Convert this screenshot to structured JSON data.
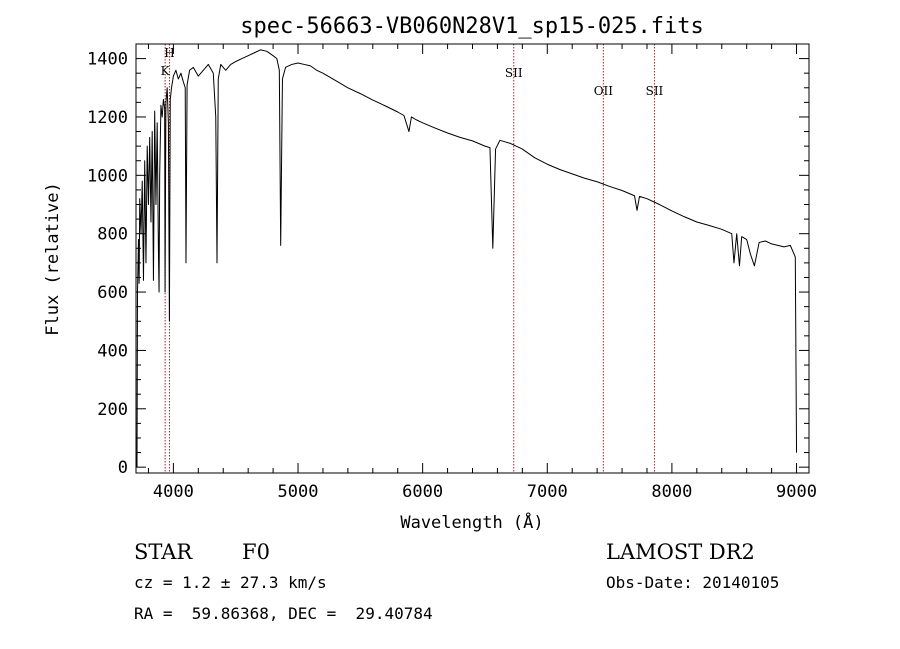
{
  "chart_data": {
    "type": "line",
    "title": "spec-56663-VB060N28V1_sp15-025.fits",
    "xlabel": "Wavelength (Å)",
    "ylabel": "Flux (relative)",
    "xlim": [
      3700,
      9100
    ],
    "ylim": [
      -20,
      1450
    ],
    "xticks": [
      4000,
      5000,
      6000,
      7000,
      8000,
      9000
    ],
    "yticks": [
      0,
      200,
      400,
      600,
      800,
      1000,
      1200,
      1400
    ],
    "grid": false,
    "line_color": "#000000",
    "marker_color": "#b22222",
    "line_markers": [
      {
        "label": "H",
        "x": 3969
      },
      {
        "label": "K",
        "x": 3934
      },
      {
        "label": "SII",
        "x": 6731
      },
      {
        "label": "OII",
        "x": 7450
      },
      {
        "label": "SII",
        "x": 7860
      }
    ],
    "series": [
      {
        "x": [
          3708,
          3712,
          3720,
          3725,
          3730,
          3740,
          3750,
          3760,
          3770,
          3780,
          3790,
          3800,
          3810,
          3820,
          3830,
          3840,
          3850,
          3860,
          3870,
          3880,
          3885,
          3890,
          3900,
          3910,
          3920,
          3930,
          3933,
          3940,
          3950,
          3960,
          3968,
          3975,
          3985,
          4000,
          4020,
          4040,
          4060,
          4080,
          4095,
          4101,
          4110,
          4130,
          4160,
          4200,
          4240,
          4280,
          4320,
          4340,
          4350,
          4360,
          4380,
          4420,
          4460,
          4500,
          4550,
          4600,
          4650,
          4700,
          4750,
          4800,
          4830,
          4850,
          4861,
          4875,
          4900,
          4950,
          5000,
          5050,
          5100,
          5150,
          5200,
          5300,
          5400,
          5500,
          5600,
          5700,
          5800,
          5850,
          5890,
          5910,
          5950,
          6000,
          6100,
          6200,
          6300,
          6400,
          6500,
          6540,
          6563,
          6585,
          6620,
          6700,
          6800,
          6900,
          7000,
          7100,
          7200,
          7300,
          7400,
          7500,
          7600,
          7700,
          7720,
          7740,
          7800,
          7900,
          8000,
          8100,
          8200,
          8300,
          8400,
          8480,
          8498,
          8520,
          8542,
          8560,
          8600,
          8630,
          8662,
          8700,
          8750,
          8800,
          8850,
          8900,
          8950,
          8990,
          9000
        ],
        "values": [
          0,
          600,
          780,
          630,
          920,
          800,
          980,
          640,
          1050,
          700,
          1100,
          900,
          1130,
          840,
          1150,
          640,
          1220,
          900,
          1180,
          740,
          600,
          1000,
          1240,
          1200,
          1260,
          1230,
          600,
          1250,
          1300,
          1180,
          500,
          1260,
          1300,
          1340,
          1360,
          1330,
          1350,
          1320,
          1300,
          700,
          1310,
          1360,
          1370,
          1340,
          1360,
          1380,
          1350,
          1200,
          700,
          1330,
          1380,
          1360,
          1380,
          1390,
          1400,
          1410,
          1420,
          1430,
          1425,
          1410,
          1400,
          1360,
          760,
          1330,
          1370,
          1380,
          1385,
          1380,
          1375,
          1360,
          1350,
          1325,
          1300,
          1280,
          1258,
          1238,
          1217,
          1205,
          1150,
          1200,
          1190,
          1180,
          1162,
          1145,
          1130,
          1118,
          1100,
          1095,
          750,
          1090,
          1120,
          1110,
          1090,
          1060,
          1038,
          1020,
          1005,
          990,
          978,
          962,
          948,
          930,
          880,
          928,
          920,
          900,
          878,
          858,
          840,
          828,
          815,
          800,
          700,
          800,
          690,
          790,
          780,
          730,
          690,
          770,
          775,
          765,
          760,
          755,
          760,
          720,
          50
        ]
      }
    ]
  },
  "info": {
    "class_label": "STAR",
    "subclass_label": "F0",
    "survey_label": "LAMOST DR2",
    "cz_line": "cz = 1.2 ± 27.3 km/s",
    "obs_date_line": "Obs-Date: 20140105",
    "coords_line": "RA =  59.86368, DEC =  29.40784"
  }
}
